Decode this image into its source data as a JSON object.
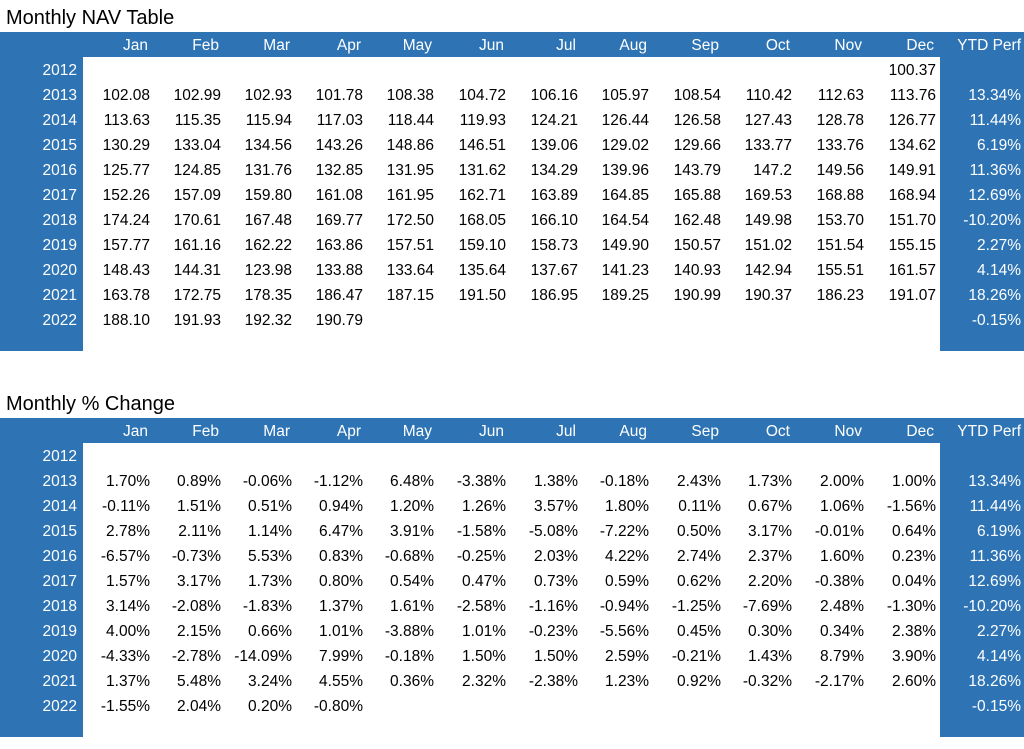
{
  "nav_table": {
    "title": "Monthly NAV Table",
    "headers": [
      "Jan",
      "Feb",
      "Mar",
      "Apr",
      "May",
      "Jun",
      "Jul",
      "Aug",
      "Sep",
      "Oct",
      "Nov",
      "Dec"
    ],
    "ytd_header": "YTD Perf",
    "rows": [
      {
        "year": "2012",
        "values": [
          "",
          "",
          "",
          "",
          "",
          "",
          "",
          "",
          "",
          "",
          "",
          "100.37"
        ],
        "ytd": ""
      },
      {
        "year": "2013",
        "values": [
          "102.08",
          "102.99",
          "102.93",
          "101.78",
          "108.38",
          "104.72",
          "106.16",
          "105.97",
          "108.54",
          "110.42",
          "112.63",
          "113.76"
        ],
        "ytd": "13.34%"
      },
      {
        "year": "2014",
        "values": [
          "113.63",
          "115.35",
          "115.94",
          "117.03",
          "118.44",
          "119.93",
          "124.21",
          "126.44",
          "126.58",
          "127.43",
          "128.78",
          "126.77"
        ],
        "ytd": "11.44%"
      },
      {
        "year": "2015",
        "values": [
          "130.29",
          "133.04",
          "134.56",
          "143.26",
          "148.86",
          "146.51",
          "139.06",
          "129.02",
          "129.66",
          "133.77",
          "133.76",
          "134.62"
        ],
        "ytd": "6.19%"
      },
      {
        "year": "2016",
        "values": [
          "125.77",
          "124.85",
          "131.76",
          "132.85",
          "131.95",
          "131.62",
          "134.29",
          "139.96",
          "143.79",
          "147.2",
          "149.56",
          "149.91"
        ],
        "ytd": "11.36%"
      },
      {
        "year": "2017",
        "values": [
          "152.26",
          "157.09",
          "159.80",
          "161.08",
          "161.95",
          "162.71",
          "163.89",
          "164.85",
          "165.88",
          "169.53",
          "168.88",
          "168.94"
        ],
        "ytd": "12.69%"
      },
      {
        "year": "2018",
        "values": [
          "174.24",
          "170.61",
          "167.48",
          "169.77",
          "172.50",
          "168.05",
          "166.10",
          "164.54",
          "162.48",
          "149.98",
          "153.70",
          "151.70"
        ],
        "ytd": "-10.20%"
      },
      {
        "year": "2019",
        "values": [
          "157.77",
          "161.16",
          "162.22",
          "163.86",
          "157.51",
          "159.10",
          "158.73",
          "149.90",
          "150.57",
          "151.02",
          "151.54",
          "155.15"
        ],
        "ytd": "2.27%"
      },
      {
        "year": "2020",
        "values": [
          "148.43",
          "144.31",
          "123.98",
          "133.88",
          "133.64",
          "135.64",
          "137.67",
          "141.23",
          "140.93",
          "142.94",
          "155.51",
          "161.57"
        ],
        "ytd": "4.14%"
      },
      {
        "year": "2021",
        "values": [
          "163.78",
          "172.75",
          "178.35",
          "186.47",
          "187.15",
          "191.50",
          "186.95",
          "189.25",
          "190.99",
          "190.37",
          "186.23",
          "191.07"
        ],
        "ytd": "18.26%"
      },
      {
        "year": "2022",
        "values": [
          "188.10",
          "191.93",
          "192.32",
          "190.79",
          "",
          "",
          "",
          "",
          "",
          "",
          "",
          ""
        ],
        "ytd": "-0.15%"
      }
    ]
  },
  "pct_table": {
    "title": "Monthly % Change",
    "headers": [
      "Jan",
      "Feb",
      "Mar",
      "Apr",
      "May",
      "Jun",
      "Jul",
      "Aug",
      "Sep",
      "Oct",
      "Nov",
      "Dec"
    ],
    "ytd_header": "YTD Perf",
    "rows": [
      {
        "year": "2012",
        "values": [
          "",
          "",
          "",
          "",
          "",
          "",
          "",
          "",
          "",
          "",
          "",
          ""
        ],
        "ytd": ""
      },
      {
        "year": "2013",
        "values": [
          "1.70%",
          "0.89%",
          "-0.06%",
          "-1.12%",
          "6.48%",
          "-3.38%",
          "1.38%",
          "-0.18%",
          "2.43%",
          "1.73%",
          "2.00%",
          "1.00%"
        ],
        "ytd": "13.34%"
      },
      {
        "year": "2014",
        "values": [
          "-0.11%",
          "1.51%",
          "0.51%",
          "0.94%",
          "1.20%",
          "1.26%",
          "3.57%",
          "1.80%",
          "0.11%",
          "0.67%",
          "1.06%",
          "-1.56%"
        ],
        "ytd": "11.44%"
      },
      {
        "year": "2015",
        "values": [
          "2.78%",
          "2.11%",
          "1.14%",
          "6.47%",
          "3.91%",
          "-1.58%",
          "-5.08%",
          "-7.22%",
          "0.50%",
          "3.17%",
          "-0.01%",
          "0.64%"
        ],
        "ytd": "6.19%"
      },
      {
        "year": "2016",
        "values": [
          "-6.57%",
          "-0.73%",
          "5.53%",
          "0.83%",
          "-0.68%",
          "-0.25%",
          "2.03%",
          "4.22%",
          "2.74%",
          "2.37%",
          "1.60%",
          "0.23%"
        ],
        "ytd": "11.36%"
      },
      {
        "year": "2017",
        "values": [
          "1.57%",
          "3.17%",
          "1.73%",
          "0.80%",
          "0.54%",
          "0.47%",
          "0.73%",
          "0.59%",
          "0.62%",
          "2.20%",
          "-0.38%",
          "0.04%"
        ],
        "ytd": "12.69%"
      },
      {
        "year": "2018",
        "values": [
          "3.14%",
          "-2.08%",
          "-1.83%",
          "1.37%",
          "1.61%",
          "-2.58%",
          "-1.16%",
          "-0.94%",
          "-1.25%",
          "-7.69%",
          "2.48%",
          "-1.30%"
        ],
        "ytd": "-10.20%"
      },
      {
        "year": "2019",
        "values": [
          "4.00%",
          "2.15%",
          "0.66%",
          "1.01%",
          "-3.88%",
          "1.01%",
          "-0.23%",
          "-5.56%",
          "0.45%",
          "0.30%",
          "0.34%",
          "2.38%"
        ],
        "ytd": "2.27%"
      },
      {
        "year": "2020",
        "values": [
          "-4.33%",
          "-2.78%",
          "-14.09%",
          "7.99%",
          "-0.18%",
          "1.50%",
          "1.50%",
          "2.59%",
          "-0.21%",
          "1.43%",
          "8.79%",
          "3.90%"
        ],
        "ytd": "4.14%"
      },
      {
        "year": "2021",
        "values": [
          "1.37%",
          "5.48%",
          "3.24%",
          "4.55%",
          "0.36%",
          "2.32%",
          "-2.38%",
          "1.23%",
          "0.92%",
          "-0.32%",
          "-2.17%",
          "2.60%"
        ],
        "ytd": "18.26%"
      },
      {
        "year": "2022",
        "values": [
          "-1.55%",
          "2.04%",
          "0.20%",
          "-0.80%",
          "",
          "",
          "",
          "",
          "",
          "",
          "",
          ""
        ],
        "ytd": "-0.15%"
      }
    ]
  },
  "colors": {
    "panel_blue": "#2e74b5",
    "header_text": "#ffffff",
    "cell_bg": "#ffffff",
    "cell_text": "#000000"
  }
}
